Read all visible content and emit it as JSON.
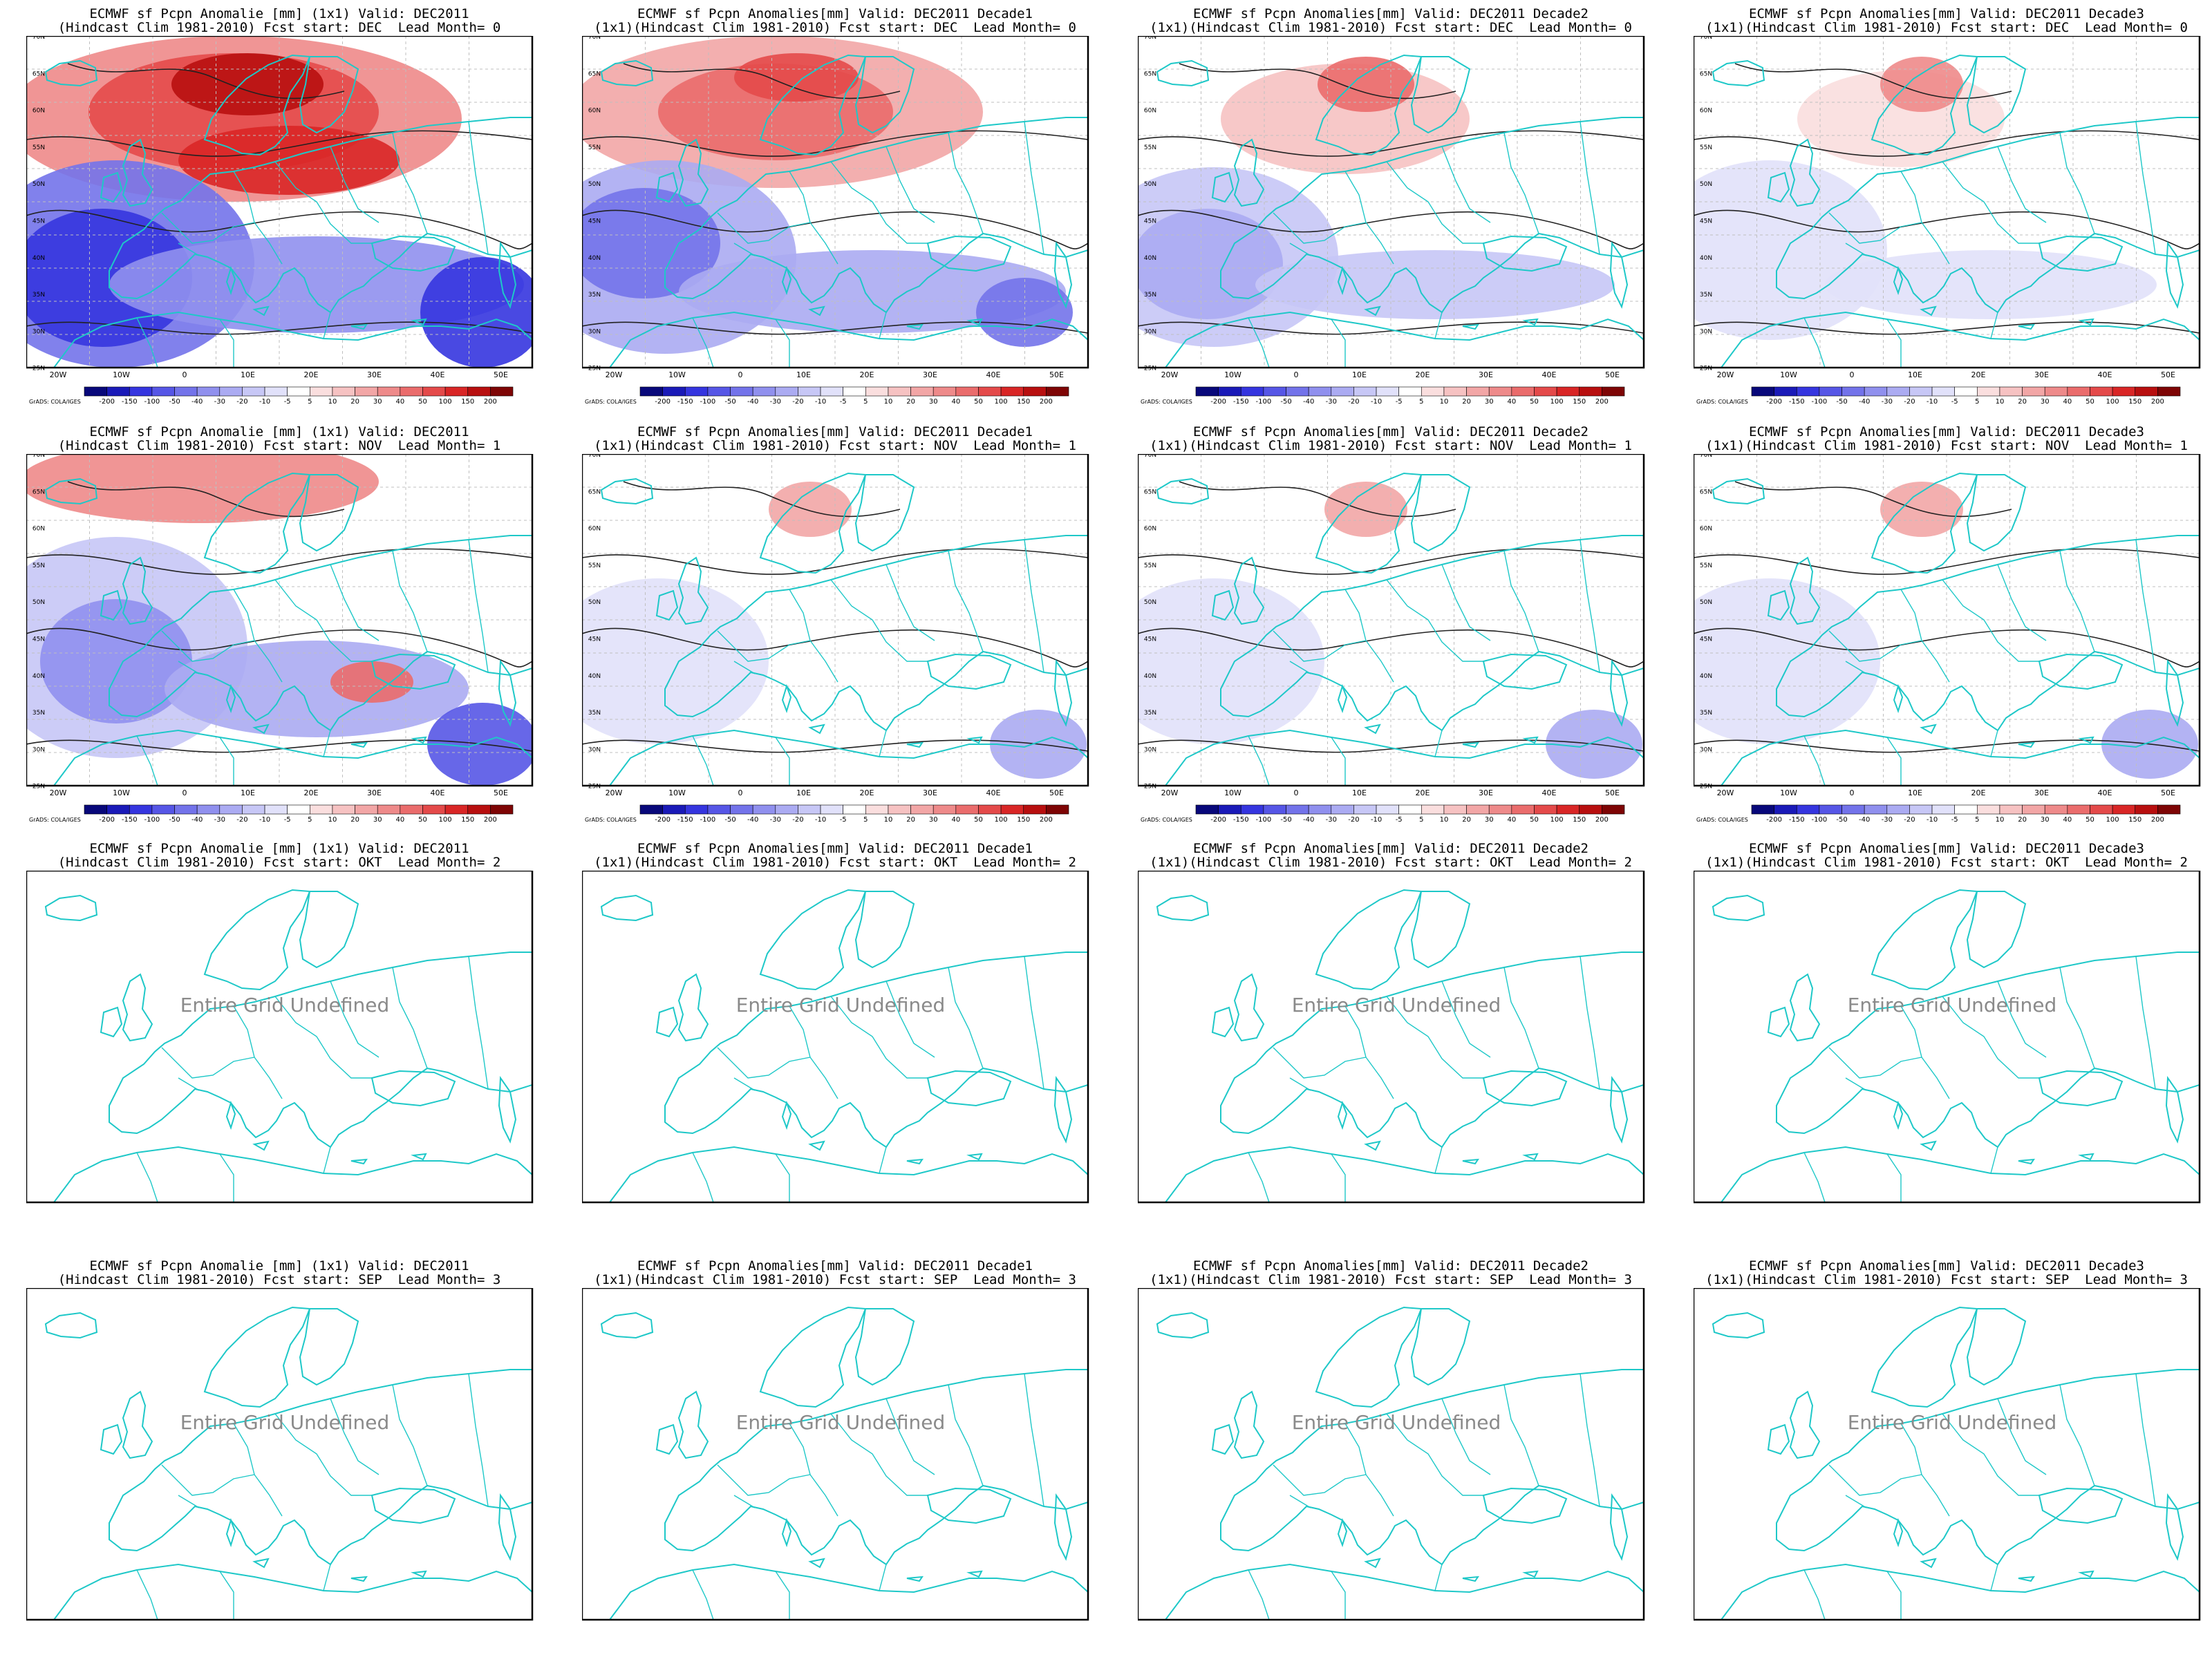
{
  "legend": {
    "levels": [
      "-200",
      "-150",
      "-100",
      "-50",
      "-40",
      "-30",
      "-20",
      "-10",
      "-5",
      "5",
      "10",
      "20",
      "30",
      "40",
      "50",
      "100",
      "150",
      "200"
    ],
    "credit": "GrADS: COLA/IGES",
    "colors": [
      "#08087a",
      "#1a1ab8",
      "#3535df",
      "#5656e6",
      "#7373ea",
      "#9090ee",
      "#ababf2",
      "#c7c7f6",
      "#e1e1fa",
      "#ffffff",
      "#fadede",
      "#f6c2c2",
      "#f2a6a6",
      "#ee8a8a",
      "#ea6c6c",
      "#e44a4a",
      "#d92626",
      "#b80f0f",
      "#7e0505"
    ]
  },
  "map_labels": {
    "lon": [
      "20W",
      "10W",
      "0",
      "10E",
      "20E",
      "30E",
      "40E",
      "50E"
    ],
    "lat": [
      "70N",
      "65N",
      "60N",
      "55N",
      "50N",
      "45N",
      "40N",
      "35N",
      "30N",
      "25N"
    ]
  },
  "undefined_text": "Entire Grid Undefined",
  "panels": [
    {
      "title1": "ECMWF sf Pcpn Anomalie [mm] (1x1) Valid: DEC2011",
      "title2": "(Hindcast Clim 1981-2010) Fcst start: DEC  Lead Month= 0",
      "defined": true,
      "intensity": 1.0
    },
    {
      "title1": "ECMWF sf Pcpn Anomalies[mm] Valid: DEC2011 Decade1",
      "title2": "(1x1)(Hindcast Clim 1981-2010) Fcst start: DEC  Lead Month= 0",
      "defined": true,
      "intensity": 0.75
    },
    {
      "title1": "ECMWF sf Pcpn Anomalies[mm] Valid: DEC2011 Decade2",
      "title2": "(1x1)(Hindcast Clim 1981-2010) Fcst start: DEC  Lead Month= 0",
      "defined": true,
      "intensity": 0.5
    },
    {
      "title1": "ECMWF sf Pcpn Anomalies[mm] Valid: DEC2011 Decade3",
      "title2": "(1x1)(Hindcast Clim 1981-2010) Fcst start: DEC  Lead Month= 0",
      "defined": true,
      "intensity": 0.35
    },
    {
      "title1": "ECMWF sf Pcpn Anomalie [mm] (1x1) Valid: DEC2011",
      "title2": "(Hindcast Clim 1981-2010) Fcst start: NOV  Lead Month= 1",
      "defined": true,
      "intensity": 0.6
    },
    {
      "title1": "ECMWF sf Pcpn Anomalies[mm] Valid: DEC2011 Decade1",
      "title2": "(1x1)(Hindcast Clim 1981-2010) Fcst start: NOV  Lead Month= 1",
      "defined": true,
      "intensity": 0.25
    },
    {
      "title1": "ECMWF sf Pcpn Anomalies[mm] Valid: DEC2011 Decade2",
      "title2": "(1x1)(Hindcast Clim 1981-2010) Fcst start: NOV  Lead Month= 1",
      "defined": true,
      "intensity": 0.25
    },
    {
      "title1": "ECMWF sf Pcpn Anomalies[mm] Valid: DEC2011 Decade3",
      "title2": "(1x1)(Hindcast Clim 1981-2010) Fcst start: NOV  Lead Month= 1",
      "defined": true,
      "intensity": 0.25
    },
    {
      "title1": "ECMWF sf Pcpn Anomalie [mm] (1x1) Valid: DEC2011",
      "title2": "(Hindcast Clim 1981-2010) Fcst start: OKT  Lead Month= 2",
      "defined": false
    },
    {
      "title1": "ECMWF sf Pcpn Anomalies[mm] Valid: DEC2011 Decade1",
      "title2": "(1x1)(Hindcast Clim 1981-2010) Fcst start: OKT  Lead Month= 2",
      "defined": false
    },
    {
      "title1": "ECMWF sf Pcpn Anomalies[mm] Valid: DEC2011 Decade2",
      "title2": "(1x1)(Hindcast Clim 1981-2010) Fcst start: OKT  Lead Month= 2",
      "defined": false
    },
    {
      "title1": "ECMWF sf Pcpn Anomalies[mm] Valid: DEC2011 Decade3",
      "title2": "(1x1)(Hindcast Clim 1981-2010) Fcst start: OKT  Lead Month= 2",
      "defined": false
    },
    {
      "title1": "ECMWF sf Pcpn Anomalie [mm] (1x1) Valid: DEC2011",
      "title2": "(Hindcast Clim 1981-2010) Fcst start: SEP  Lead Month= 3",
      "defined": false
    },
    {
      "title1": "ECMWF sf Pcpn Anomalies[mm] Valid: DEC2011 Decade1",
      "title2": "(1x1)(Hindcast Clim 1981-2010) Fcst start: SEP  Lead Month= 3",
      "defined": false
    },
    {
      "title1": "ECMWF sf Pcpn Anomalies[mm] Valid: DEC2011 Decade2",
      "title2": "(1x1)(Hindcast Clim 1981-2010) Fcst start: SEP  Lead Month= 3",
      "defined": false
    },
    {
      "title1": "ECMWF sf Pcpn Anomalies[mm] Valid: DEC2011 Decade3",
      "title2": "(1x1)(Hindcast Clim 1981-2010) Fcst start: SEP  Lead Month= 3",
      "defined": false
    }
  ]
}
